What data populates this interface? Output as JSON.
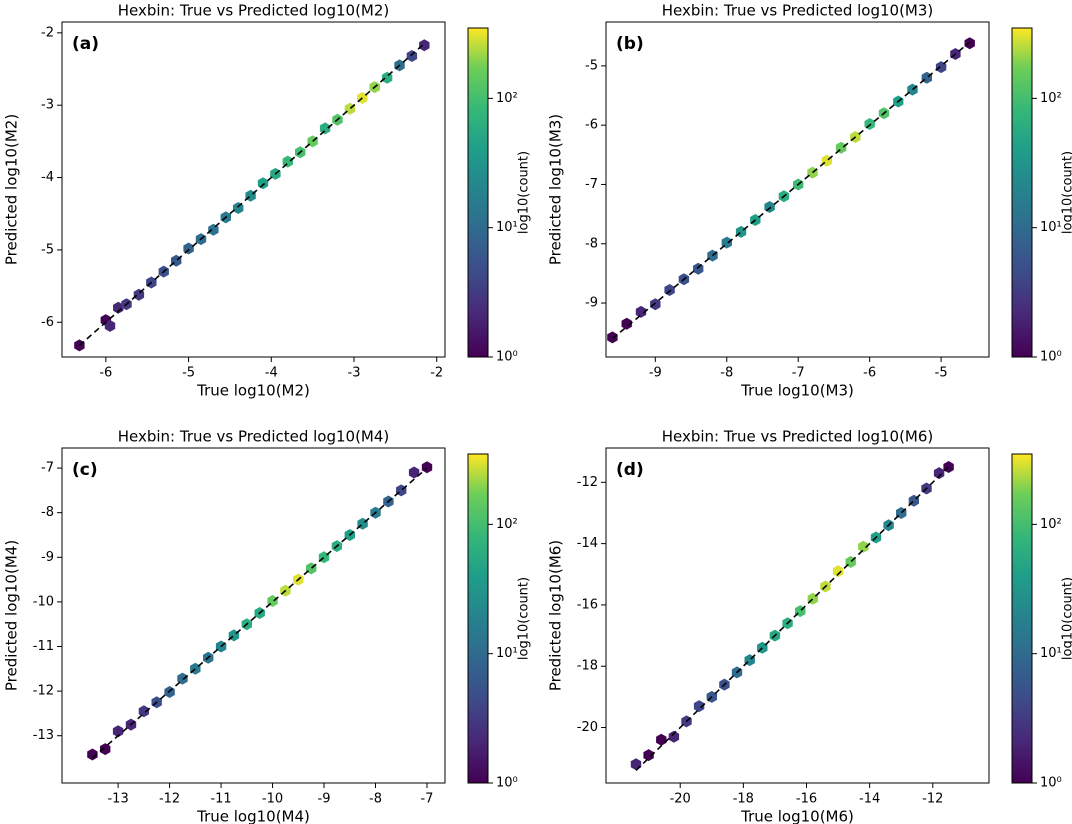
{
  "chart_data": [
    {
      "type": "hexbin",
      "title": "Hexbin: True vs Predicted log10(M2)",
      "panel_label": "(a)",
      "x_label": "True log10(M2)",
      "y_label": "Predicted log10(M2)",
      "colorbar_label": "log10(count)",
      "xlim": [
        -6.53,
        -1.9
      ],
      "ylim": [
        -6.48,
        -1.85
      ],
      "xticks": [
        -6,
        -5,
        -4,
        -3,
        -2
      ],
      "yticks": [
        -6,
        -5,
        -4,
        -3,
        -2
      ],
      "colormap": "viridis",
      "color_scale": "log",
      "clim": [
        1,
        350
      ],
      "cticks": [
        {
          "value": 1,
          "label": "10⁰"
        },
        {
          "value": 10,
          "label": "10¹"
        },
        {
          "value": 100,
          "label": "10²"
        }
      ],
      "identity_line": true,
      "x": [
        -6.32,
        -6.0,
        -5.95,
        -5.85,
        -5.75,
        -5.6,
        -5.45,
        -5.3,
        -5.15,
        -5.0,
        -4.85,
        -4.7,
        -4.55,
        -4.4,
        -4.25,
        -4.1,
        -3.95,
        -3.8,
        -3.65,
        -3.5,
        -3.35,
        -3.2,
        -3.05,
        -2.9,
        -2.75,
        -2.6,
        -2.45,
        -2.3,
        -2.15
      ],
      "y": [
        -6.32,
        -5.97,
        -6.05,
        -5.8,
        -5.75,
        -5.62,
        -5.45,
        -5.3,
        -5.15,
        -4.98,
        -4.85,
        -4.72,
        -4.55,
        -4.42,
        -4.25,
        -4.08,
        -3.95,
        -3.78,
        -3.65,
        -3.5,
        -3.32,
        -3.2,
        -3.05,
        -2.9,
        -2.75,
        -2.62,
        -2.45,
        -2.32,
        -2.17
      ],
      "counts": [
        1,
        1,
        2,
        2,
        3,
        3,
        4,
        5,
        6,
        8,
        10,
        12,
        15,
        20,
        25,
        40,
        50,
        80,
        100,
        150,
        60,
        120,
        250,
        300,
        200,
        60,
        10,
        4,
        2
      ]
    },
    {
      "type": "hexbin",
      "title": "Hexbin: True vs Predicted log10(M3)",
      "panel_label": "(b)",
      "x_label": "True log10(M3)",
      "y_label": "Predicted log10(M3)",
      "colorbar_label": "log10(count)",
      "xlim": [
        -9.69,
        -4.33
      ],
      "ylim": [
        -9.91,
        -4.26
      ],
      "xticks": [
        -9,
        -8,
        -7,
        -6,
        -5
      ],
      "yticks": [
        -9,
        -8,
        -7,
        -6,
        -5
      ],
      "colormap": "viridis",
      "color_scale": "log",
      "clim": [
        1,
        350
      ],
      "cticks": [
        {
          "value": 1,
          "label": "10⁰"
        },
        {
          "value": 10,
          "label": "10¹"
        },
        {
          "value": 100,
          "label": "10²"
        }
      ],
      "identity_line": true,
      "x": [
        -9.6,
        -9.4,
        -9.2,
        -9.0,
        -8.8,
        -8.6,
        -8.4,
        -8.2,
        -8.0,
        -7.8,
        -7.6,
        -7.4,
        -7.2,
        -7.0,
        -6.8,
        -6.6,
        -6.4,
        -6.2,
        -6.0,
        -5.8,
        -5.6,
        -5.4,
        -5.2,
        -5.0,
        -4.8,
        -4.6
      ],
      "y": [
        -9.58,
        -9.35,
        -9.15,
        -9.02,
        -8.78,
        -8.6,
        -8.42,
        -8.2,
        -7.98,
        -7.8,
        -7.6,
        -7.38,
        -7.2,
        -7.0,
        -6.8,
        -6.6,
        -6.38,
        -6.2,
        -5.98,
        -5.8,
        -5.6,
        -5.4,
        -5.2,
        -5.02,
        -4.8,
        -4.62
      ],
      "counts": [
        1,
        1,
        2,
        3,
        4,
        5,
        6,
        10,
        15,
        30,
        40,
        20,
        60,
        90,
        200,
        300,
        150,
        250,
        80,
        120,
        40,
        20,
        8,
        4,
        2,
        1
      ]
    },
    {
      "type": "hexbin",
      "title": "Hexbin: True vs Predicted log10(M4)",
      "panel_label": "(c)",
      "x_label": "True log10(M4)",
      "y_label": "Predicted log10(M4)",
      "colorbar_label": "log10(count)",
      "xlim": [
        -14.09,
        -6.65
      ],
      "ylim": [
        -14.06,
        -6.55
      ],
      "xticks": [
        -13,
        -12,
        -11,
        -10,
        -9,
        -8,
        -7
      ],
      "yticks": [
        -13,
        -12,
        -11,
        -10,
        -9,
        -8,
        -7
      ],
      "colormap": "viridis",
      "color_scale": "log",
      "clim": [
        1,
        350
      ],
      "cticks": [
        {
          "value": 1,
          "label": "10⁰"
        },
        {
          "value": 10,
          "label": "10¹"
        },
        {
          "value": 100,
          "label": "10²"
        }
      ],
      "identity_line": true,
      "x": [
        -13.5,
        -13.25,
        -13.0,
        -12.75,
        -12.5,
        -12.25,
        -12.0,
        -11.75,
        -11.5,
        -11.25,
        -11.0,
        -10.75,
        -10.5,
        -10.25,
        -10.0,
        -9.75,
        -9.5,
        -9.25,
        -9.0,
        -8.75,
        -8.5,
        -8.25,
        -8.0,
        -7.75,
        -7.5,
        -7.25,
        -7.0
      ],
      "y": [
        -13.42,
        -13.3,
        -12.9,
        -12.75,
        -12.45,
        -12.25,
        -12.02,
        -11.72,
        -11.5,
        -11.25,
        -11.0,
        -10.75,
        -10.5,
        -10.25,
        -9.98,
        -9.75,
        -9.5,
        -9.25,
        -9.0,
        -8.75,
        -8.5,
        -8.25,
        -8.0,
        -7.75,
        -7.5,
        -7.1,
        -6.98
      ],
      "counts": [
        1,
        1,
        2,
        2,
        3,
        5,
        8,
        10,
        15,
        12,
        20,
        30,
        60,
        50,
        150,
        250,
        300,
        120,
        80,
        60,
        40,
        25,
        15,
        8,
        4,
        2,
        1
      ]
    },
    {
      "type": "hexbin",
      "title": "Hexbin: True vs Predicted log10(M6)",
      "panel_label": "(d)",
      "x_label": "True log10(M6)",
      "y_label": "Predicted log10(M6)",
      "colorbar_label": "log10(count)",
      "xlim": [
        -22.35,
        -10.22
      ],
      "ylim": [
        -21.81,
        -10.88
      ],
      "xticks": [
        -20,
        -18,
        -16,
        -14,
        -12
      ],
      "yticks": [
        -20,
        -18,
        -16,
        -14,
        -12
      ],
      "colormap": "viridis",
      "color_scale": "log",
      "clim": [
        1,
        350
      ],
      "cticks": [
        {
          "value": 1,
          "label": "10⁰"
        },
        {
          "value": 10,
          "label": "10¹"
        },
        {
          "value": 100,
          "label": "10²"
        }
      ],
      "identity_line": true,
      "x": [
        -21.4,
        -21.0,
        -20.6,
        -20.2,
        -19.8,
        -19.4,
        -19.0,
        -18.6,
        -18.2,
        -17.8,
        -17.4,
        -17.0,
        -16.6,
        -16.2,
        -15.8,
        -15.4,
        -15.0,
        -14.6,
        -14.2,
        -13.8,
        -13.4,
        -13.0,
        -12.6,
        -12.2,
        -11.8,
        -11.5
      ],
      "y": [
        -21.2,
        -20.9,
        -20.4,
        -20.3,
        -19.8,
        -19.3,
        -19.0,
        -18.6,
        -18.2,
        -17.8,
        -17.4,
        -17.0,
        -16.6,
        -16.2,
        -15.8,
        -15.4,
        -14.9,
        -14.6,
        -14.1,
        -13.8,
        -13.4,
        -13.0,
        -12.6,
        -12.2,
        -11.7,
        -11.5
      ],
      "counts": [
        2,
        1,
        1,
        2,
        3,
        4,
        6,
        5,
        10,
        20,
        30,
        50,
        60,
        100,
        200,
        250,
        300,
        150,
        200,
        40,
        20,
        10,
        6,
        3,
        2,
        1
      ]
    }
  ]
}
